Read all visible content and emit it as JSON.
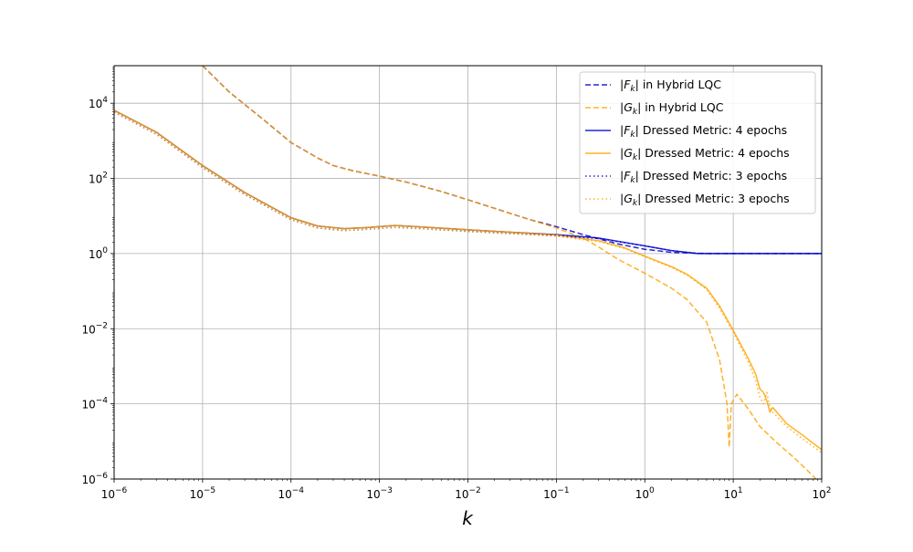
{
  "chart_data": {
    "type": "line",
    "title": "",
    "xlabel": "k",
    "ylabel": "",
    "x_scale": "log",
    "y_scale": "log",
    "xlim": [
      1e-06,
      100
    ],
    "ylim": [
      1e-06,
      100000
    ],
    "grid": true,
    "legend_position": "top-right",
    "x_ticks": [
      {
        "value": 1e-06,
        "base": "10",
        "exp": "−6"
      },
      {
        "value": 1e-05,
        "base": "10",
        "exp": "−5"
      },
      {
        "value": 0.0001,
        "base": "10",
        "exp": "−4"
      },
      {
        "value": 0.001,
        "base": "10",
        "exp": "−3"
      },
      {
        "value": 0.01,
        "base": "10",
        "exp": "−2"
      },
      {
        "value": 0.1,
        "base": "10",
        "exp": "−1"
      },
      {
        "value": 1,
        "base": "10",
        "exp": "0"
      },
      {
        "value": 10,
        "base": "10",
        "exp": "1"
      },
      {
        "value": 100,
        "base": "10",
        "exp": "2"
      }
    ],
    "y_ticks": [
      {
        "value": 1e-06,
        "base": "10",
        "exp": "−6"
      },
      {
        "value": 0.0001,
        "base": "10",
        "exp": "−4"
      },
      {
        "value": 0.01,
        "base": "10",
        "exp": "−2"
      },
      {
        "value": 1,
        "base": "10",
        "exp": "0"
      },
      {
        "value": 100,
        "base": "10",
        "exp": "2"
      },
      {
        "value": 10000,
        "base": "10",
        "exp": "4"
      }
    ],
    "series": [
      {
        "name": "|F_k| in Hybrid LQC",
        "legend_sym": "F",
        "legend_rest": "in Hybrid LQC",
        "color": "#0000cc",
        "style": "dashed",
        "points": [
          [
            1e-05,
            100000.0
          ],
          [
            2e-05,
            20000.0
          ],
          [
            5e-05,
            3500
          ],
          [
            0.0001,
            900
          ],
          [
            0.0002,
            350
          ],
          [
            0.0003,
            220
          ],
          [
            0.0005,
            160
          ],
          [
            0.001,
            115
          ],
          [
            0.002,
            80
          ],
          [
            0.005,
            45
          ],
          [
            0.01,
            27
          ],
          [
            0.02,
            16
          ],
          [
            0.05,
            8
          ],
          [
            0.1,
            5.2
          ],
          [
            0.2,
            3.2
          ],
          [
            0.5,
            1.8
          ],
          [
            1,
            1.3
          ],
          [
            2,
            1.08
          ],
          [
            5,
            1.0
          ],
          [
            10,
            1.0
          ],
          [
            100,
            1.0
          ]
        ]
      },
      {
        "name": "|G_k| in Hybrid LQC",
        "legend_sym": "G",
        "legend_rest": "in Hybrid LQC",
        "color": "#ffa500",
        "style": "dashed",
        "points": [
          [
            1e-05,
            100000.0
          ],
          [
            2e-05,
            20000.0
          ],
          [
            5e-05,
            3500
          ],
          [
            0.0001,
            900
          ],
          [
            0.0002,
            350
          ],
          [
            0.0003,
            220
          ],
          [
            0.0005,
            160
          ],
          [
            0.001,
            115
          ],
          [
            0.002,
            80
          ],
          [
            0.005,
            45
          ],
          [
            0.01,
            27
          ],
          [
            0.02,
            16
          ],
          [
            0.05,
            8
          ],
          [
            0.1,
            4.8
          ],
          [
            0.2,
            2.6
          ],
          [
            0.3,
            1.5
          ],
          [
            0.5,
            0.7
          ],
          [
            1,
            0.3
          ],
          [
            2,
            0.12
          ],
          [
            3,
            0.06
          ],
          [
            5,
            0.015
          ],
          [
            7,
            0.0015
          ],
          [
            8.5,
            0.0001
          ],
          [
            9,
            7e-06
          ],
          [
            9.5,
            0.0001
          ],
          [
            11,
            0.00018
          ],
          [
            15,
            7e-05
          ],
          [
            20,
            2.5e-05
          ],
          [
            30,
            1e-05
          ],
          [
            50,
            3.5e-06
          ],
          [
            80,
            1.2e-06
          ],
          [
            100,
            7e-07
          ]
        ]
      },
      {
        "name": "|F_k| Dressed Metric: 4 epochs",
        "legend_sym": "F",
        "legend_rest": "Dressed Metric: 4 epochs",
        "color": "#0000cc",
        "style": "solid",
        "points": [
          [
            1e-06,
            6500
          ],
          [
            3e-06,
            1700
          ],
          [
            1e-05,
            220
          ],
          [
            3e-05,
            42
          ],
          [
            0.0001,
            9
          ],
          [
            0.0002,
            5.4
          ],
          [
            0.0004,
            4.6
          ],
          [
            0.0007,
            4.9
          ],
          [
            0.0015,
            5.6
          ],
          [
            0.003,
            5.1
          ],
          [
            0.01,
            4.3
          ],
          [
            0.03,
            3.7
          ],
          [
            0.1,
            3.2
          ],
          [
            0.3,
            2.6
          ],
          [
            1,
            1.6
          ],
          [
            2,
            1.2
          ],
          [
            4,
            1.0
          ],
          [
            10,
            1.0
          ],
          [
            100,
            1.0
          ]
        ]
      },
      {
        "name": "|G_k| Dressed Metric: 4 epochs",
        "legend_sym": "G",
        "legend_rest": "Dressed Metric: 4 epochs",
        "color": "#ffa500",
        "style": "solid",
        "points": [
          [
            1e-06,
            6500
          ],
          [
            3e-06,
            1700
          ],
          [
            1e-05,
            220
          ],
          [
            3e-05,
            42
          ],
          [
            0.0001,
            9
          ],
          [
            0.0002,
            5.4
          ],
          [
            0.0004,
            4.6
          ],
          [
            0.0007,
            4.9
          ],
          [
            0.0015,
            5.6
          ],
          [
            0.003,
            5.1
          ],
          [
            0.01,
            4.3
          ],
          [
            0.03,
            3.7
          ],
          [
            0.1,
            3.1
          ],
          [
            0.3,
            2.2
          ],
          [
            0.6,
            1.4
          ],
          [
            1,
            0.85
          ],
          [
            2,
            0.45
          ],
          [
            3,
            0.28
          ],
          [
            5,
            0.12
          ],
          [
            7,
            0.04
          ],
          [
            10,
            0.009
          ],
          [
            15,
            0.0015
          ],
          [
            18,
            0.0006
          ],
          [
            20,
            0.00025
          ],
          [
            22,
            0.0002
          ],
          [
            24,
            0.00012
          ],
          [
            26,
            6e-05
          ],
          [
            28,
            8e-05
          ],
          [
            40,
            3e-05
          ],
          [
            60,
            1.5e-05
          ],
          [
            100,
            6e-06
          ]
        ]
      },
      {
        "name": "|F_k| Dressed Metric: 3 epochs",
        "legend_sym": "F",
        "legend_rest": "Dressed Metric: 3 epochs",
        "color": "#0000cc",
        "style": "dotted",
        "points": [
          [
            1e-06,
            5800
          ],
          [
            3e-06,
            1500
          ],
          [
            1e-05,
            195
          ],
          [
            3e-05,
            37
          ],
          [
            0.0001,
            8
          ],
          [
            0.0002,
            4.8
          ],
          [
            0.0004,
            4.1
          ],
          [
            0.0007,
            4.4
          ],
          [
            0.0015,
            5.0
          ],
          [
            0.003,
            4.6
          ],
          [
            0.01,
            3.9
          ],
          [
            0.03,
            3.4
          ],
          [
            0.1,
            3.0
          ],
          [
            0.3,
            2.5
          ],
          [
            1,
            1.6
          ],
          [
            2,
            1.2
          ],
          [
            4,
            1.0
          ],
          [
            10,
            1.0
          ],
          [
            100,
            1.0
          ]
        ]
      },
      {
        "name": "|G_k| Dressed Metric: 3 epochs",
        "legend_sym": "G",
        "legend_rest": "Dressed Metric: 3 epochs",
        "color": "#ffa500",
        "style": "dotted",
        "points": [
          [
            1e-06,
            5800
          ],
          [
            3e-06,
            1500
          ],
          [
            1e-05,
            195
          ],
          [
            3e-05,
            37
          ],
          [
            0.0001,
            8
          ],
          [
            0.0002,
            4.8
          ],
          [
            0.0004,
            4.1
          ],
          [
            0.0007,
            4.4
          ],
          [
            0.0015,
            5.0
          ],
          [
            0.003,
            4.6
          ],
          [
            0.01,
            3.9
          ],
          [
            0.03,
            3.4
          ],
          [
            0.1,
            2.9
          ],
          [
            0.3,
            2.1
          ],
          [
            0.6,
            1.35
          ],
          [
            1,
            0.82
          ],
          [
            2,
            0.43
          ],
          [
            3,
            0.27
          ],
          [
            5,
            0.11
          ],
          [
            7,
            0.035
          ],
          [
            10,
            0.008
          ],
          [
            15,
            0.0012
          ],
          [
            18,
            0.0004
          ],
          [
            20,
            0.00015
          ],
          [
            22,
            0.0001
          ],
          [
            24,
            0.0002
          ],
          [
            26,
            8e-05
          ],
          [
            28,
            6e-05
          ],
          [
            40,
            2.5e-05
          ],
          [
            60,
            1.2e-05
          ],
          [
            100,
            5e-06
          ]
        ]
      }
    ]
  }
}
